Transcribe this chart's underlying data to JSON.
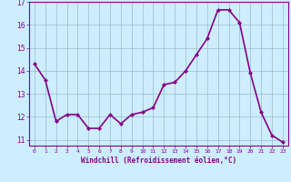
{
  "x": [
    0,
    1,
    2,
    3,
    4,
    5,
    6,
    7,
    8,
    9,
    10,
    11,
    12,
    13,
    14,
    15,
    16,
    17,
    18,
    19,
    20,
    21,
    22,
    23
  ],
  "y": [
    14.3,
    13.6,
    11.8,
    12.1,
    12.1,
    11.5,
    11.5,
    12.1,
    11.7,
    12.1,
    12.2,
    12.4,
    13.4,
    13.5,
    14.0,
    14.7,
    15.4,
    16.65,
    16.65,
    16.1,
    13.9,
    12.2,
    11.2,
    10.9
  ],
  "line_color": "#880088",
  "marker": "D",
  "marker_size": 2.0,
  "bg_color": "#cceeff",
  "grid_color": "#99bbcc",
  "xlabel": "Windchill (Refroidissement éolien,°C)",
  "xlabel_color": "#880088",
  "xtick_labels": [
    "0",
    "1",
    "2",
    "3",
    "4",
    "5",
    "6",
    "7",
    "8",
    "9",
    "10",
    "11",
    "12",
    "13",
    "14",
    "15",
    "16",
    "17",
    "18",
    "19",
    "20",
    "21",
    "22",
    "23"
  ],
  "xtick_color": "#880088",
  "ytick_color": "#880088",
  "ylim": [
    10.75,
    17.0
  ],
  "xlim": [
    -0.5,
    23.5
  ],
  "yticks": [
    11,
    12,
    13,
    14,
    15,
    16,
    17
  ],
  "spine_color": "#880088",
  "line_width": 1.2
}
